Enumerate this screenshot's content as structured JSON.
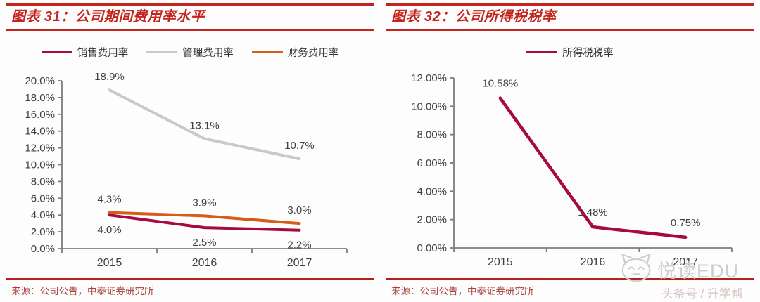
{
  "page": {
    "accent_red": "#c3251e",
    "watermark": {
      "brand": "悦读EDU",
      "subtitle": "头条号 / 升学帮",
      "logo": "cat-face-logo"
    }
  },
  "figures": [
    {
      "title": "图表 31：公司期间费用率水平",
      "source": "来源：公司公告，中泰证券研究所",
      "chart_data": {
        "type": "line",
        "title": "公司期间费用率水平",
        "categories": [
          "2015",
          "2016",
          "2017"
        ],
        "series": [
          {
            "name": "销售费用率",
            "color": "#a60a44",
            "values": [
              4.0,
              2.5,
              2.2
            ],
            "data_labels": [
              "4.0%",
              "2.5%",
              "2.2%"
            ],
            "label_position": "below"
          },
          {
            "name": "管理费用率",
            "color": "#c9c9c9",
            "values": [
              18.9,
              13.1,
              10.7
            ],
            "data_labels": [
              "18.9%",
              "13.1%",
              "10.7%"
            ],
            "label_position": "above"
          },
          {
            "name": "财务费用率",
            "color": "#d85c19",
            "values": [
              4.3,
              3.9,
              3.0
            ],
            "data_labels": [
              "4.3%",
              "3.9%",
              "3.0%"
            ],
            "label_position": "above"
          }
        ],
        "ylim": [
          0,
          20
        ],
        "ytick_step": 2,
        "ytick_labels": [
          "0.0%",
          "2.0%",
          "4.0%",
          "6.0%",
          "8.0%",
          "10.0%",
          "12.0%",
          "14.0%",
          "16.0%",
          "18.0%",
          "20.0%"
        ],
        "legend_position": "top",
        "grid": false
      }
    },
    {
      "title": "图表 32：公司所得税税率",
      "source": "来源：公司公告，中泰证券研究所",
      "chart_data": {
        "type": "line",
        "title": "公司所得税税率",
        "categories": [
          "2015",
          "2016",
          "2017"
        ],
        "series": [
          {
            "name": "所得税税率",
            "color": "#a60a44",
            "values": [
              10.58,
              1.48,
              0.75
            ],
            "data_labels": [
              "10.58%",
              "1.48%",
              "0.75%"
            ],
            "label_position": "above"
          }
        ],
        "ylim": [
          0,
          12
        ],
        "ytick_step": 2,
        "ytick_labels": [
          "0.00%",
          "2.00%",
          "4.00%",
          "6.00%",
          "8.00%",
          "10.00%",
          "12.00%"
        ],
        "legend_position": "top",
        "grid": false
      }
    }
  ]
}
